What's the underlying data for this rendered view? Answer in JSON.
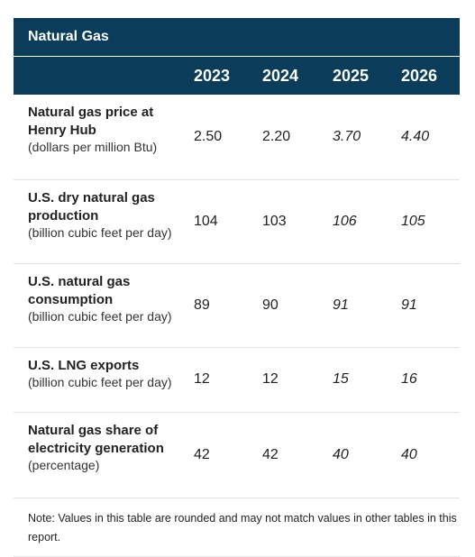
{
  "title": "Natural Gas",
  "years": [
    "2023",
    "2024",
    "2025",
    "2026"
  ],
  "rows": [
    {
      "name": "Natural gas price at Henry Hub",
      "unit": "(dollars per million Btu)",
      "values": [
        "2.50",
        "2.20",
        "3.70",
        "4.40"
      ]
    },
    {
      "name": "U.S. dry natural gas production",
      "unit": "(billion cubic feet per day)",
      "values": [
        "104",
        "103",
        "106",
        "105"
      ]
    },
    {
      "name": "U.S. natural gas consumption",
      "unit": "(billion cubic feet per day)",
      "values": [
        "89",
        "90",
        "91",
        "91"
      ]
    },
    {
      "name": "U.S. LNG exports",
      "unit": "(billion cubic feet per day)",
      "values": [
        "12",
        "12",
        "15",
        "16"
      ]
    },
    {
      "name": "Natural gas share of electricity generation",
      "unit": "(percentage)",
      "values": [
        "42",
        "42",
        "40",
        "40"
      ]
    }
  ],
  "note": "Note: Values in this table are rounded and may not match values in other tables in this report."
}
